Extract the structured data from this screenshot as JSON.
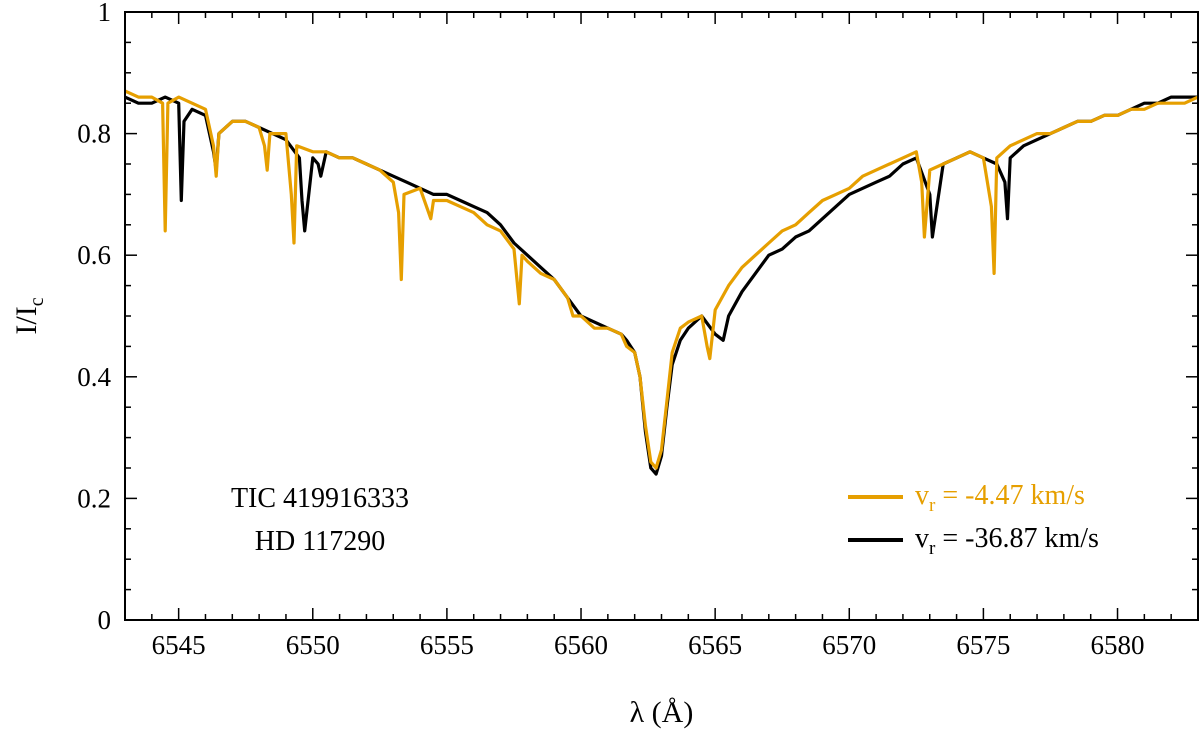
{
  "chart_data": {
    "type": "line",
    "xlabel": "λ (Å)",
    "ylabel": {
      "main": "I/I",
      "sub": "c"
    },
    "xlim": [
      6543,
      6583
    ],
    "ylim": [
      0,
      1
    ],
    "xticks": [
      6545,
      6550,
      6555,
      6560,
      6565,
      6570,
      6575,
      6580
    ],
    "yticks": [
      0,
      0.2,
      0.4,
      0.6,
      0.8,
      1
    ],
    "ytick_labels": [
      "0",
      "0.2",
      "0.4",
      "0.6",
      "0.8",
      "1"
    ],
    "annotation": [
      "TIC 419916333",
      "HD 117290"
    ],
    "legend_position": "lower-right",
    "series": [
      {
        "legend_main": "v",
        "legend_sub": "r",
        "legend_rest": " = -4.47 km/s",
        "color": "#E69F00",
        "x": [
          6543.0,
          6543.5,
          6544.0,
          6544.4,
          6544.5,
          6544.6,
          6545.0,
          6545.5,
          6546.0,
          6546.3,
          6546.4,
          6546.5,
          6547.0,
          6547.5,
          6548.0,
          6548.2,
          6548.3,
          6548.4,
          6549.0,
          6549.2,
          6549.3,
          6549.4,
          6550.0,
          6550.5,
          6551.0,
          6551.5,
          6552.0,
          6552.5,
          6553.0,
          6553.2,
          6553.3,
          6553.4,
          6554.0,
          6554.4,
          6554.5,
          6555.0,
          6555.5,
          6556.0,
          6556.5,
          6557.0,
          6557.5,
          6557.7,
          6557.8,
          6558.0,
          6558.5,
          6559.0,
          6559.5,
          6559.7,
          6560.0,
          6560.5,
          6561.0,
          6561.5,
          6561.7,
          6562.0,
          6562.2,
          6562.4,
          6562.6,
          6562.8,
          6563.0,
          6563.2,
          6563.4,
          6563.7,
          6564.0,
          6564.5,
          6564.7,
          6564.8,
          6565.0,
          6565.5,
          6566.0,
          6566.5,
          6567.0,
          6567.5,
          6568.0,
          6568.5,
          6569.0,
          6569.5,
          6570.0,
          6570.5,
          6571.0,
          6571.5,
          6572.0,
          6572.5,
          6572.7,
          6572.8,
          6573.0,
          6573.5,
          6574.0,
          6574.5,
          6575.0,
          6575.3,
          6575.4,
          6575.5,
          6576.0,
          6576.5,
          6577.0,
          6577.5,
          6578.0,
          6578.5,
          6579.0,
          6579.5,
          6580.0,
          6580.5,
          6581.0,
          6581.5,
          6582.0,
          6582.5,
          6583.0
        ],
        "y": [
          0.87,
          0.86,
          0.86,
          0.85,
          0.64,
          0.85,
          0.86,
          0.85,
          0.84,
          0.78,
          0.73,
          0.8,
          0.82,
          0.82,
          0.81,
          0.78,
          0.74,
          0.8,
          0.8,
          0.7,
          0.62,
          0.78,
          0.77,
          0.77,
          0.76,
          0.76,
          0.75,
          0.74,
          0.72,
          0.67,
          0.56,
          0.7,
          0.71,
          0.66,
          0.69,
          0.69,
          0.68,
          0.67,
          0.65,
          0.64,
          0.61,
          0.52,
          0.6,
          0.59,
          0.57,
          0.56,
          0.53,
          0.5,
          0.5,
          0.48,
          0.48,
          0.47,
          0.45,
          0.44,
          0.4,
          0.32,
          0.26,
          0.25,
          0.28,
          0.36,
          0.44,
          0.48,
          0.49,
          0.5,
          0.45,
          0.43,
          0.51,
          0.55,
          0.58,
          0.6,
          0.62,
          0.64,
          0.65,
          0.67,
          0.69,
          0.7,
          0.71,
          0.73,
          0.74,
          0.75,
          0.76,
          0.77,
          0.72,
          0.63,
          0.74,
          0.75,
          0.76,
          0.77,
          0.76,
          0.68,
          0.57,
          0.76,
          0.78,
          0.79,
          0.8,
          0.8,
          0.81,
          0.82,
          0.82,
          0.83,
          0.83,
          0.84,
          0.84,
          0.85,
          0.85,
          0.85,
          0.86
        ]
      },
      {
        "legend_main": "v",
        "legend_sub": "r",
        "legend_rest": " = -36.87 km/s",
        "color": "#000000",
        "x": [
          6543.0,
          6543.5,
          6544.0,
          6544.5,
          6545.0,
          6545.1,
          6545.2,
          6545.5,
          6546.0,
          6546.3,
          6546.4,
          6546.5,
          6547.0,
          6547.5,
          6548.0,
          6548.5,
          6549.0,
          6549.5,
          6549.6,
          6549.7,
          6550.0,
          6550.2,
          6550.3,
          6550.5,
          6551.0,
          6551.5,
          6552.0,
          6552.5,
          6553.0,
          6553.5,
          6554.0,
          6554.5,
          6555.0,
          6555.5,
          6556.0,
          6556.5,
          6557.0,
          6557.5,
          6558.0,
          6558.5,
          6559.0,
          6559.5,
          6560.0,
          6560.5,
          6561.0,
          6561.5,
          6561.7,
          6562.0,
          6562.2,
          6562.4,
          6562.6,
          6562.8,
          6563.0,
          6563.2,
          6563.4,
          6563.7,
          6564.0,
          6564.5,
          6565.0,
          6565.3,
          6565.5,
          6566.0,
          6566.5,
          6567.0,
          6567.5,
          6568.0,
          6568.5,
          6569.0,
          6569.5,
          6570.0,
          6570.5,
          6571.0,
          6571.5,
          6572.0,
          6572.5,
          6573.0,
          6573.1,
          6573.2,
          6573.5,
          6574.0,
          6574.5,
          6575.0,
          6575.5,
          6575.8,
          6575.9,
          6576.0,
          6576.5,
          6577.0,
          6577.5,
          6578.0,
          6578.5,
          6579.0,
          6579.5,
          6580.0,
          6580.5,
          6581.0,
          6581.5,
          6582.0,
          6582.5,
          6583.0
        ],
        "y": [
          0.86,
          0.85,
          0.85,
          0.86,
          0.85,
          0.69,
          0.82,
          0.84,
          0.83,
          0.77,
          0.74,
          0.8,
          0.82,
          0.82,
          0.81,
          0.8,
          0.79,
          0.76,
          0.69,
          0.64,
          0.76,
          0.75,
          0.73,
          0.77,
          0.76,
          0.76,
          0.75,
          0.74,
          0.73,
          0.72,
          0.71,
          0.7,
          0.7,
          0.69,
          0.68,
          0.67,
          0.65,
          0.62,
          0.6,
          0.58,
          0.56,
          0.53,
          0.5,
          0.49,
          0.48,
          0.47,
          0.46,
          0.44,
          0.4,
          0.31,
          0.25,
          0.24,
          0.27,
          0.35,
          0.42,
          0.46,
          0.48,
          0.5,
          0.47,
          0.46,
          0.5,
          0.54,
          0.57,
          0.6,
          0.61,
          0.63,
          0.64,
          0.66,
          0.68,
          0.7,
          0.71,
          0.72,
          0.73,
          0.75,
          0.76,
          0.7,
          0.63,
          0.66,
          0.75,
          0.76,
          0.77,
          0.76,
          0.75,
          0.72,
          0.66,
          0.76,
          0.78,
          0.79,
          0.8,
          0.81,
          0.82,
          0.82,
          0.83,
          0.83,
          0.84,
          0.85,
          0.85,
          0.86,
          0.86,
          0.86
        ]
      }
    ]
  }
}
